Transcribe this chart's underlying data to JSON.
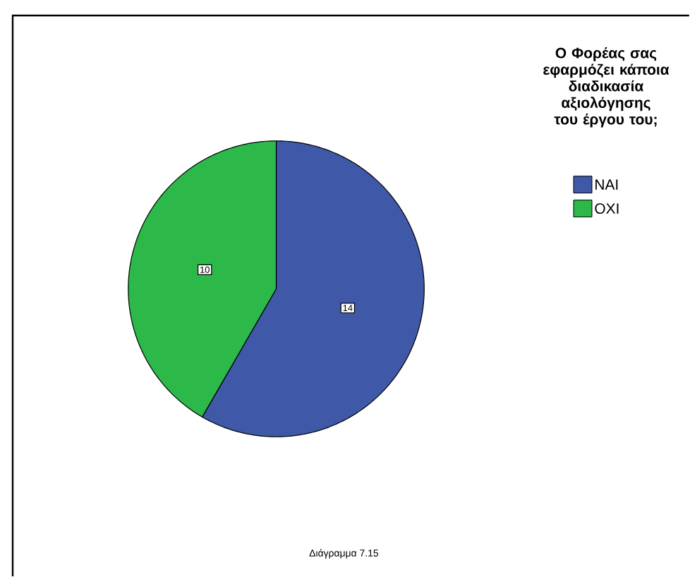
{
  "chart_data": {
    "type": "pie",
    "legend_title": "Ο Φορέας σας εφαρμόζει κάποια διαδικασία αξιολόγησης του έργου του;",
    "categories": [
      "ΝΑΙ",
      "ΟΧΙ"
    ],
    "values": [
      14,
      10
    ],
    "colors": [
      "#3f58a8",
      "#2db84a"
    ],
    "legend": "top right",
    "data_labels": true,
    "annotations": [
      "Διάγραμμα 7.15"
    ]
  }
}
